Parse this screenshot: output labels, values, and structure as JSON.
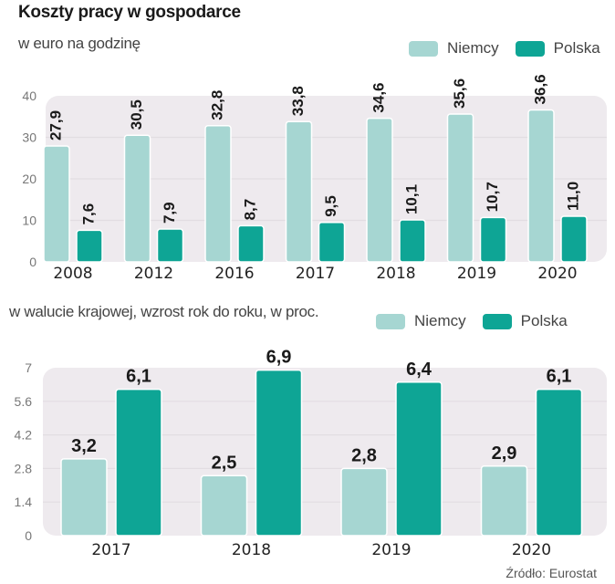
{
  "title": "Koszty pracy w gospodarce",
  "source": "Źródło: Eurostat",
  "colors": {
    "niemcy": "#a6d6d2",
    "polska": "#0ea595",
    "panel": "#eeeaee",
    "grid": "#e2dde2"
  },
  "legend": [
    {
      "name": "Niemcy",
      "key": "niemcy"
    },
    {
      "name": "Polska",
      "key": "polska"
    }
  ],
  "chart_data": [
    {
      "type": "bar",
      "title": "Koszty pracy w gospodarce",
      "subtitle": "w euro na godzinę",
      "categories": [
        "2008",
        "2012",
        "2016",
        "2017",
        "2018",
        "2019",
        "2020"
      ],
      "series": [
        {
          "name": "Niemcy",
          "values": [
            27.9,
            30.5,
            32.8,
            33.8,
            34.6,
            35.6,
            36.6
          ],
          "labels": [
            "27,9",
            "30,5",
            "32,8",
            "33,8",
            "34,6",
            "35,6",
            "36,6"
          ]
        },
        {
          "name": "Polska",
          "values": [
            7.6,
            7.9,
            8.7,
            9.5,
            10.1,
            10.7,
            11.0
          ],
          "labels": [
            "7,6",
            "7,9",
            "8,7",
            "9,5",
            "10,1",
            "10,7",
            "11,0"
          ]
        }
      ],
      "yticks": [
        "0",
        "10",
        "20",
        "30",
        "40"
      ],
      "ylim": [
        0,
        40
      ],
      "grid": true,
      "legend_position": "top-right",
      "label_orientation": "vertical"
    },
    {
      "type": "bar",
      "subtitle": "w walucie krajowej, wzrost rok do roku, w proc.",
      "categories": [
        "2017",
        "2018",
        "2019",
        "2020"
      ],
      "series": [
        {
          "name": "Niemcy",
          "values": [
            3.2,
            2.5,
            2.8,
            2.9
          ],
          "labels": [
            "3,2",
            "2,5",
            "2,8",
            "2,9"
          ]
        },
        {
          "name": "Polska",
          "values": [
            6.1,
            6.9,
            6.4,
            6.1
          ],
          "labels": [
            "6,1",
            "6,9",
            "6,4",
            "6,1"
          ]
        }
      ],
      "yticks": [
        "0",
        "1.4",
        "2.8",
        "4.2",
        "5.6",
        "7"
      ],
      "ylim": [
        0,
        7
      ],
      "grid": true,
      "legend_position": "top-right",
      "label_orientation": "horizontal"
    }
  ]
}
